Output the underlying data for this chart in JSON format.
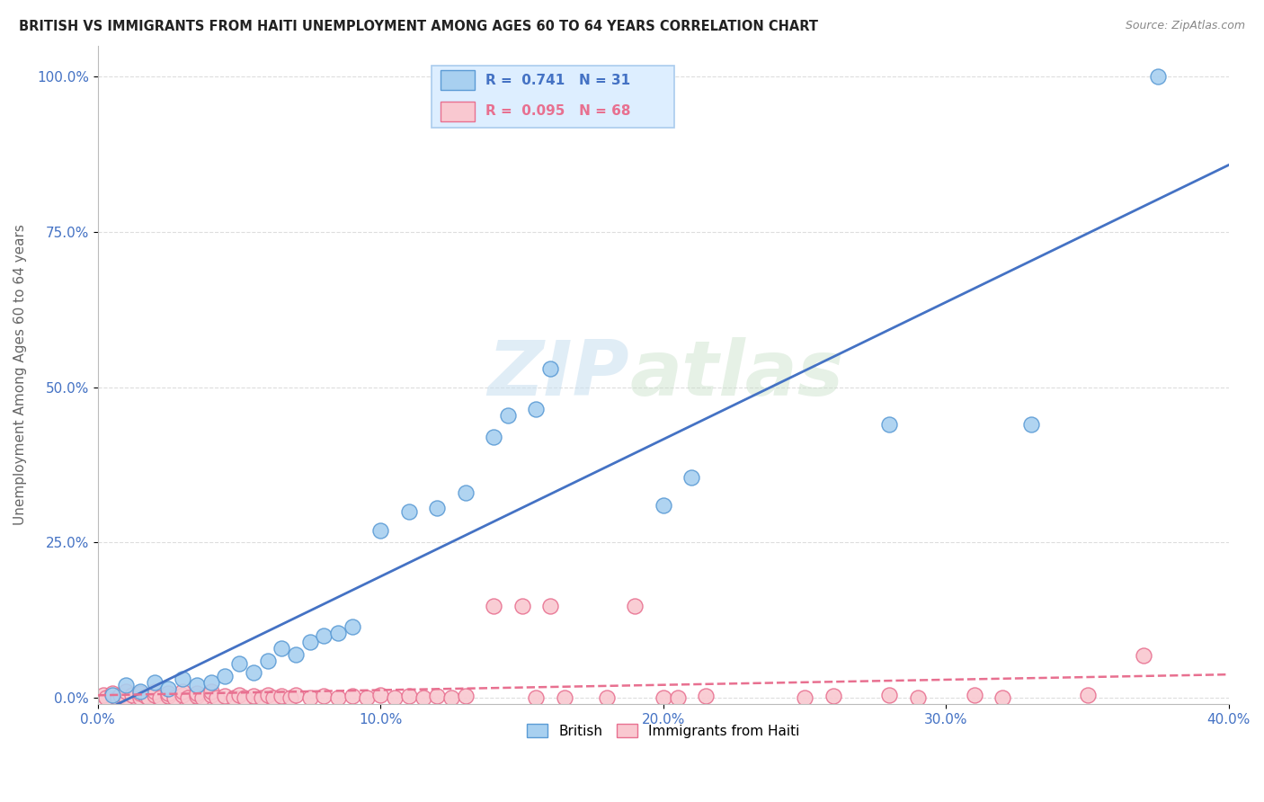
{
  "title": "BRITISH VS IMMIGRANTS FROM HAITI UNEMPLOYMENT AMONG AGES 60 TO 64 YEARS CORRELATION CHART",
  "source": "Source: ZipAtlas.com",
  "ylabel": "Unemployment Among Ages 60 to 64 years",
  "watermark": "ZIPatlas",
  "xlim": [
    0.0,
    0.4
  ],
  "ylim": [
    -0.01,
    1.05
  ],
  "xtick_vals": [
    0.0,
    0.1,
    0.2,
    0.3,
    0.4
  ],
  "ytick_vals": [
    0.0,
    0.25,
    0.5,
    0.75,
    1.0
  ],
  "xtick_labels": [
    "0.0%",
    "10.0%",
    "20.0%",
    "30.0%",
    "40.0%"
  ],
  "ytick_labels": [
    "0.0%",
    "25.0%",
    "50.0%",
    "75.0%",
    "100.0%"
  ],
  "british_color": "#a8d0f0",
  "british_edge_color": "#5b9bd5",
  "haiti_color": "#f9c8d0",
  "haiti_edge_color": "#e87090",
  "regression_british_color": "#4472c4",
  "regression_haiti_color": "#e87090",
  "R_british": 0.741,
  "N_british": 31,
  "R_haiti": 0.095,
  "N_haiti": 68,
  "british_x": [
    0.005,
    0.01,
    0.015,
    0.02,
    0.025,
    0.03,
    0.035,
    0.04,
    0.045,
    0.05,
    0.055,
    0.06,
    0.065,
    0.07,
    0.075,
    0.08,
    0.085,
    0.09,
    0.1,
    0.11,
    0.12,
    0.13,
    0.14,
    0.145,
    0.155,
    0.16,
    0.2,
    0.21,
    0.28,
    0.33,
    0.375
  ],
  "british_y": [
    0.005,
    0.02,
    0.01,
    0.025,
    0.015,
    0.03,
    0.02,
    0.025,
    0.035,
    0.055,
    0.04,
    0.06,
    0.08,
    0.07,
    0.09,
    0.1,
    0.105,
    0.115,
    0.27,
    0.3,
    0.305,
    0.33,
    0.42,
    0.455,
    0.465,
    0.53,
    0.31,
    0.355,
    0.44,
    0.44,
    1.0
  ],
  "haiti_x": [
    0.002,
    0.003,
    0.005,
    0.007,
    0.008,
    0.01,
    0.01,
    0.012,
    0.015,
    0.015,
    0.017,
    0.018,
    0.02,
    0.02,
    0.022,
    0.025,
    0.025,
    0.027,
    0.03,
    0.03,
    0.032,
    0.035,
    0.035,
    0.037,
    0.04,
    0.04,
    0.042,
    0.045,
    0.048,
    0.05,
    0.052,
    0.055,
    0.058,
    0.06,
    0.062,
    0.065,
    0.068,
    0.07,
    0.075,
    0.08,
    0.085,
    0.09,
    0.095,
    0.1,
    0.105,
    0.11,
    0.115,
    0.12,
    0.125,
    0.13,
    0.14,
    0.15,
    0.155,
    0.16,
    0.165,
    0.18,
    0.19,
    0.2,
    0.205,
    0.215,
    0.25,
    0.26,
    0.28,
    0.29,
    0.31,
    0.32,
    0.35,
    0.37
  ],
  "haiti_y": [
    0.005,
    0.0,
    0.008,
    0.0,
    0.005,
    0.0,
    0.01,
    0.005,
    0.0,
    0.008,
    0.003,
    0.0,
    0.005,
    0.01,
    0.0,
    0.003,
    0.008,
    0.0,
    0.005,
    0.01,
    0.0,
    0.003,
    0.008,
    0.0,
    0.005,
    0.01,
    0.0,
    0.003,
    0.0,
    0.005,
    0.0,
    0.003,
    0.0,
    0.005,
    0.0,
    0.003,
    0.0,
    0.005,
    0.0,
    0.003,
    0.0,
    0.003,
    0.0,
    0.005,
    0.0,
    0.003,
    0.0,
    0.003,
    0.0,
    0.003,
    0.148,
    0.148,
    0.0,
    0.148,
    0.0,
    0.0,
    0.148,
    0.0,
    0.0,
    0.003,
    0.0,
    0.003,
    0.005,
    0.0,
    0.005,
    0.0,
    0.005,
    0.068
  ],
  "legend_box_color": "#ddeeff",
  "legend_box_edge": "#aaccee",
  "background_color": "#ffffff",
  "grid_color": "#dddddd"
}
